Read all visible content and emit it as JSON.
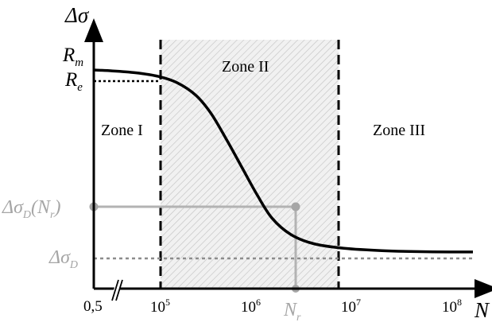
{
  "chart_data": {
    "type": "line",
    "title": "",
    "xlabel": "N",
    "ylabel": "Δσ",
    "x_scale": "log",
    "x_ticks": [
      {
        "value": 0.5,
        "label": "0,5"
      },
      {
        "value": 100000,
        "label_base": "10",
        "label_exp": "5"
      },
      {
        "value": 1000000,
        "label_base": "10",
        "label_exp": "6"
      },
      {
        "value": 10000000,
        "label_base": "10",
        "label_exp": "7"
      },
      {
        "value": 100000000,
        "label_base": "10",
        "label_exp": "8"
      }
    ],
    "x_axis_break": "//",
    "y_levels": [
      {
        "name": "R",
        "subscript": "m",
        "role": "curve-start"
      },
      {
        "name": "R",
        "subscript": "e",
        "role": "dotted-reference"
      },
      {
        "name": "Δσ",
        "subscript": "D",
        "suffix": "(N",
        "suffix_sub": "r",
        "suffix_end": ")",
        "role": "marker"
      },
      {
        "name": "Δσ",
        "subscript": "D",
        "role": "dotted-reference"
      }
    ],
    "marker_x": {
      "name": "N",
      "subscript": "r"
    },
    "zones": [
      {
        "label": "Zone I",
        "x_from": 0.5,
        "x_to": 100000,
        "hatched": false
      },
      {
        "label": "Zone II",
        "x_from": 100000,
        "x_to": 7000000,
        "hatched": true
      },
      {
        "label": "Zone III",
        "x_from": 7000000,
        "x_to": 300000000,
        "hatched": false
      }
    ],
    "curve": {
      "description_points_logx_frac": [
        [
          0.0,
          1.0
        ],
        [
          0.05,
          0.995
        ],
        [
          0.11,
          0.985
        ],
        [
          0.17,
          0.965
        ],
        [
          0.22,
          0.93
        ],
        [
          0.27,
          0.86
        ],
        [
          0.31,
          0.76
        ],
        [
          0.35,
          0.62
        ],
        [
          0.39,
          0.47
        ],
        [
          0.43,
          0.32
        ],
        [
          0.47,
          0.19
        ],
        [
          0.52,
          0.1
        ],
        [
          0.58,
          0.05
        ],
        [
          0.66,
          0.025
        ],
        [
          0.76,
          0.012
        ],
        [
          0.88,
          0.006
        ],
        [
          1.0,
          0.005
        ]
      ]
    },
    "grid": false,
    "legend": "none",
    "colors": {
      "curve": "#000000",
      "guide": "#b3b3b3",
      "hatch_bg": "#f1f1f1",
      "hatch_line": "#c4c4c4",
      "marker_label": "#a6a6a6",
      "text": "#000000"
    }
  }
}
